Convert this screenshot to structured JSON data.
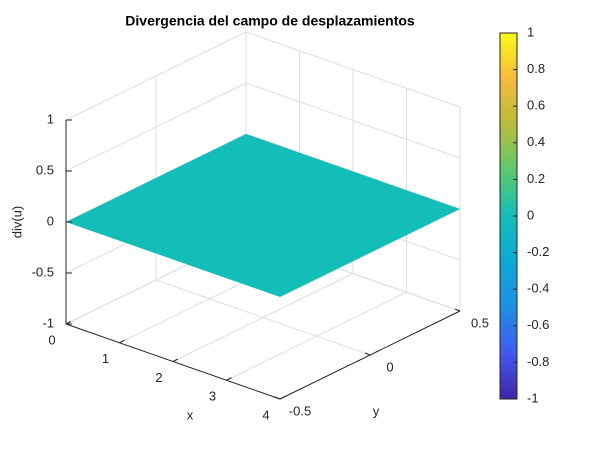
{
  "chart_data": {
    "type": "surface3d",
    "title": "Divergencia del campo de desplazamientos",
    "xlabel": "x",
    "ylabel": "y",
    "zlabel": "div(u)",
    "x": [
      0,
      4
    ],
    "y": [
      -0.5,
      0.5
    ],
    "z": [
      [
        0,
        0
      ],
      [
        0,
        0
      ]
    ],
    "xlim": [
      0,
      4
    ],
    "xticks": [
      0,
      1,
      2,
      3,
      4
    ],
    "ylim": [
      -0.5,
      0.5
    ],
    "yticks": [
      -0.5,
      0,
      0.5
    ],
    "zlim": [
      -1,
      1
    ],
    "zticks": [
      -1,
      -0.5,
      0,
      0.5,
      1
    ],
    "grid": true,
    "colorbar": {
      "clim": [
        -1,
        1
      ],
      "ticks": [
        -1,
        -0.8,
        -0.6,
        -0.4,
        -0.2,
        0,
        0.2,
        0.4,
        0.6,
        0.8,
        1
      ],
      "colormap": [
        "#3e26a8",
        "#4258ee",
        "#1e90e4",
        "#0ba9d7",
        "#13beb8",
        "#5cc86e",
        "#b8bd3a",
        "#f7ba3c",
        "#f9fb15"
      ]
    }
  }
}
